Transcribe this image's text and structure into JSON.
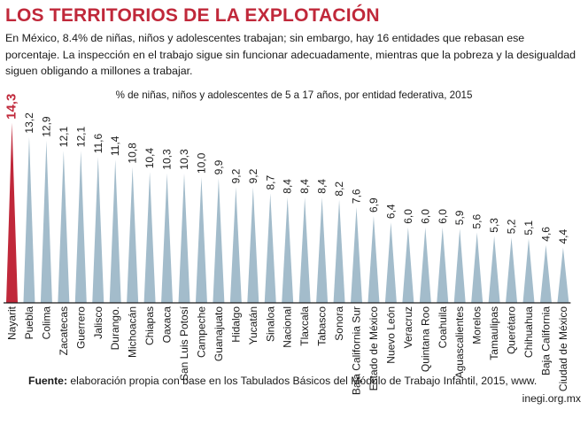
{
  "header": {
    "title": "LOS TERRITORIOS DE LA EXPLOTACIÓN",
    "intro": "En México, 8.4% de niñas, niños y adolescentes trabajan;  sin embargo, hay 16 entidades que rebasan ese porcentaje.  La inspección en el trabajo sigue sin funcionar adecuadamente, mientras que la pobreza y la desigualdad siguen obligando a millones a trabajar."
  },
  "chart_data": {
    "type": "bar",
    "subtitle": "% de niñas, niños y adolescentes de 5 a 17 años, por entidad federativa, 2015",
    "categories": [
      "Nayarit",
      "Puebla",
      "Colima",
      "Zacatecas",
      "Guerrero",
      "Jalisco",
      "Durango.",
      "Michoacán",
      "Chiapas",
      "Oaxaca",
      "San Luis Potosí",
      "Campeche",
      "Guanajuato",
      "Hidalgo",
      "Yucatán",
      "Sinaloa",
      "Nacional",
      "Tlaxcala",
      "Tabasco",
      "Sonora",
      "Baja California Sur",
      "Estado de México",
      "Nuevo León",
      "Veracruz",
      "Quintana Roo",
      "Coahuila",
      "Aguascalientes",
      "Morelos",
      "Tamaulipas",
      "Querétaro",
      "Chihuahua",
      "Baja California",
      "Ciudad de México"
    ],
    "values": [
      14.3,
      13.2,
      12.9,
      12.1,
      12.1,
      11.6,
      11.4,
      10.8,
      10.4,
      10.3,
      10.3,
      10.0,
      9.9,
      9.2,
      9.2,
      8.7,
      8.4,
      8.4,
      8.4,
      8.2,
      7.6,
      6.9,
      6.4,
      6.0,
      6.0,
      6.0,
      5.9,
      5.6,
      5.3,
      5.2,
      5.1,
      4.6,
      4.4
    ],
    "value_labels": [
      "14,3",
      "13,2",
      "12,9",
      "12,1",
      "12,1",
      "11,6",
      "11,4",
      "10,8",
      "10,4",
      "10,3",
      "10,3",
      "10,0",
      "9,9",
      "9,2",
      "9,2",
      "8,7",
      "8,4",
      "8,4",
      "8,4",
      "8,2",
      "7,6",
      "6,9",
      "6,4",
      "6,0",
      "6,0",
      "6,0",
      "5,9",
      "5,6",
      "5,3",
      "5,2",
      "5,1",
      "4,6",
      "4,4"
    ],
    "highlight_index": 0,
    "colors": {
      "highlight": "#c0283a",
      "bar": "#a3bccb",
      "line": "#1a1a1a"
    }
  },
  "source": {
    "label": "Fuente:",
    "text": " elaboración propia con base en los Tabulados Básicos del Módulo de Trabajo Infantil, 2015, www.",
    "line2": "inegi.org.mx"
  }
}
